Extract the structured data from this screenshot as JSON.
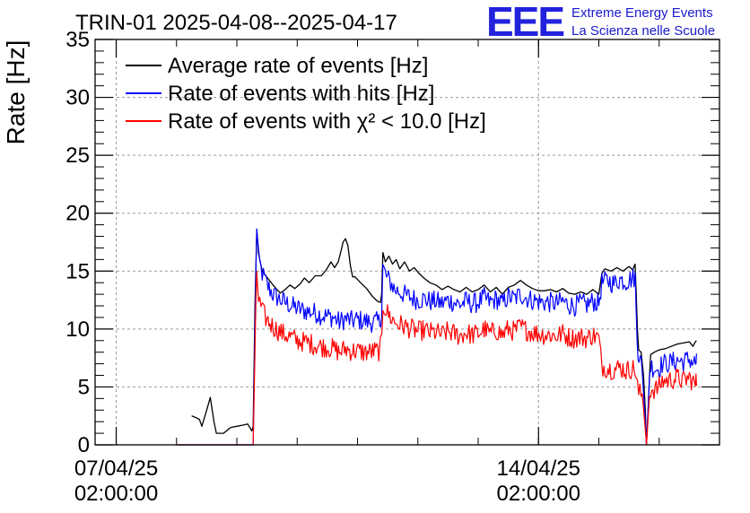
{
  "header": {
    "title": "TRIN-01 2025-04-08--2025-04-17",
    "logo_letters": "EEE",
    "logo_line1": "Extreme Energy Events",
    "logo_line2": "La Scienza nelle Scuole"
  },
  "chart_data": {
    "type": "line",
    "title": "TRIN-01 2025-04-08--2025-04-17",
    "ylabel": "Rate [Hz]",
    "xlabel": "",
    "x_unit": "days since 07/04/25 02:00:00",
    "xlim": [
      -0.35,
      10.0
    ],
    "ylim": [
      0,
      35
    ],
    "yticks": [
      0,
      5,
      10,
      15,
      20,
      25,
      30,
      35
    ],
    "xticks": [
      {
        "x": 0,
        "line1": "07/04/25",
        "line2": "02:00:00"
      },
      {
        "x": 7,
        "line1": "14/04/25",
        "line2": "02:00:00"
      }
    ],
    "grid": true,
    "legend_position": "top-left",
    "series": [
      {
        "name": "Average rate of events [Hz]",
        "color": "#000000",
        "points": [
          [
            1.25,
            2.5
          ],
          [
            1.3,
            2.4
          ],
          [
            1.38,
            2.2
          ],
          [
            1.42,
            1.6
          ],
          [
            1.46,
            2.3
          ],
          [
            1.5,
            3.0
          ],
          [
            1.56,
            4.1
          ],
          [
            1.62,
            2.0
          ],
          [
            1.66,
            1.0
          ],
          [
            1.72,
            1.0
          ],
          [
            1.78,
            1.0
          ],
          [
            1.85,
            1.3
          ],
          [
            1.9,
            1.5
          ],
          [
            2.0,
            1.6
          ],
          [
            2.1,
            1.7
          ],
          [
            2.18,
            1.8
          ],
          [
            2.25,
            1.2
          ],
          [
            2.27,
            1.6
          ],
          [
            2.3,
            12.0
          ],
          [
            2.33,
            18.6
          ],
          [
            2.36,
            16.5
          ],
          [
            2.42,
            15.0
          ],
          [
            2.48,
            14.6
          ],
          [
            2.54,
            14.2
          ],
          [
            2.6,
            13.8
          ],
          [
            2.65,
            13.5
          ],
          [
            2.72,
            13.1
          ],
          [
            2.8,
            13.4
          ],
          [
            2.88,
            13.8
          ],
          [
            2.96,
            13.5
          ],
          [
            3.05,
            13.9
          ],
          [
            3.12,
            14.4
          ],
          [
            3.2,
            14.0
          ],
          [
            3.3,
            14.6
          ],
          [
            3.4,
            14.6
          ],
          [
            3.48,
            15.1
          ],
          [
            3.56,
            15.8
          ],
          [
            3.62,
            15.3
          ],
          [
            3.68,
            15.8
          ],
          [
            3.72,
            16.6
          ],
          [
            3.76,
            17.5
          ],
          [
            3.8,
            17.8
          ],
          [
            3.84,
            17.2
          ],
          [
            3.88,
            15.5
          ],
          [
            3.92,
            14.5
          ],
          [
            3.96,
            14.5
          ],
          [
            4.05,
            14.0
          ],
          [
            4.15,
            13.5
          ],
          [
            4.25,
            12.8
          ],
          [
            4.33,
            12.4
          ],
          [
            4.38,
            12.3
          ],
          [
            4.4,
            13.0
          ],
          [
            4.42,
            16.6
          ],
          [
            4.46,
            15.8
          ],
          [
            4.52,
            16.3
          ],
          [
            4.58,
            15.6
          ],
          [
            4.64,
            16.0
          ],
          [
            4.7,
            15.2
          ],
          [
            4.78,
            15.8
          ],
          [
            4.86,
            15.0
          ],
          [
            4.94,
            15.3
          ],
          [
            5.02,
            14.8
          ],
          [
            5.1,
            14.4
          ],
          [
            5.2,
            14.0
          ],
          [
            5.3,
            13.8
          ],
          [
            5.4,
            13.4
          ],
          [
            5.5,
            13.7
          ],
          [
            5.6,
            13.4
          ],
          [
            5.7,
            13.2
          ],
          [
            5.8,
            13.6
          ],
          [
            5.9,
            13.2
          ],
          [
            6.0,
            13.4
          ],
          [
            6.1,
            13.8
          ],
          [
            6.2,
            13.2
          ],
          [
            6.3,
            13.6
          ],
          [
            6.4,
            13.0
          ],
          [
            6.5,
            13.6
          ],
          [
            6.6,
            13.8
          ],
          [
            6.7,
            14.2
          ],
          [
            6.8,
            13.8
          ],
          [
            6.9,
            13.5
          ],
          [
            7.0,
            13.3
          ],
          [
            7.1,
            13.3
          ],
          [
            7.2,
            13.4
          ],
          [
            7.3,
            13.2
          ],
          [
            7.4,
            13.5
          ],
          [
            7.5,
            13.1
          ],
          [
            7.6,
            13.0
          ],
          [
            7.7,
            13.2
          ],
          [
            7.8,
            13.0
          ],
          [
            7.9,
            13.4
          ],
          [
            8.0,
            13.0
          ],
          [
            8.05,
            14.8
          ],
          [
            8.1,
            15.2
          ],
          [
            8.2,
            15.0
          ],
          [
            8.3,
            15.3
          ],
          [
            8.4,
            15.0
          ],
          [
            8.5,
            15.4
          ],
          [
            8.56,
            15.1
          ],
          [
            8.6,
            15.6
          ],
          [
            8.62,
            13.0
          ],
          [
            8.64,
            10.0
          ],
          [
            8.66,
            8.2
          ],
          [
            8.7,
            8.0
          ],
          [
            8.74,
            6.0
          ],
          [
            8.77,
            3.0
          ],
          [
            8.79,
            0.0
          ],
          [
            8.81,
            2.0
          ],
          [
            8.84,
            6.0
          ],
          [
            8.86,
            7.8
          ],
          [
            8.92,
            8.0
          ],
          [
            9.0,
            8.2
          ],
          [
            9.1,
            8.3
          ],
          [
            9.2,
            8.5
          ],
          [
            9.3,
            8.7
          ],
          [
            9.4,
            8.8
          ],
          [
            9.5,
            8.9
          ],
          [
            9.56,
            8.5
          ],
          [
            9.6,
            8.9
          ],
          [
            9.62,
            9.0
          ]
        ]
      },
      {
        "name": "Rate of events with hits [Hz]",
        "color": "#0000ff",
        "points": [
          [
            1.0,
            0.0
          ],
          [
            2.27,
            0.0
          ],
          [
            2.3,
            10.0
          ],
          [
            2.33,
            19.0
          ],
          [
            2.36,
            16.0
          ],
          [
            2.42,
            14.8
          ],
          [
            2.5,
            13.8
          ],
          [
            2.6,
            13.0
          ],
          [
            2.7,
            12.6
          ],
          [
            2.8,
            12.3
          ],
          [
            2.9,
            12.0
          ],
          [
            3.0,
            11.8
          ],
          [
            3.1,
            11.6
          ],
          [
            3.2,
            11.5
          ],
          [
            3.3,
            11.4
          ],
          [
            3.4,
            11.2
          ],
          [
            3.5,
            11.1
          ],
          [
            3.6,
            11.0
          ],
          [
            3.7,
            10.6
          ],
          [
            3.8,
            10.9
          ],
          [
            3.9,
            10.7
          ],
          [
            4.0,
            10.8
          ],
          [
            4.1,
            10.7
          ],
          [
            4.2,
            10.6
          ],
          [
            4.3,
            10.6
          ],
          [
            4.37,
            10.6
          ],
          [
            4.4,
            11.5
          ],
          [
            4.42,
            15.3
          ],
          [
            4.48,
            14.5
          ],
          [
            4.55,
            14.0
          ],
          [
            4.62,
            13.4
          ],
          [
            4.7,
            13.2
          ],
          [
            4.8,
            12.9
          ],
          [
            4.9,
            12.7
          ],
          [
            5.0,
            12.5
          ],
          [
            5.1,
            12.6
          ],
          [
            5.2,
            12.4
          ],
          [
            5.3,
            12.4
          ],
          [
            5.4,
            12.2
          ],
          [
            5.5,
            12.5
          ],
          [
            5.6,
            12.3
          ],
          [
            5.7,
            12.1
          ],
          [
            5.8,
            12.4
          ],
          [
            5.9,
            12.2
          ],
          [
            6.0,
            12.3
          ],
          [
            6.1,
            12.7
          ],
          [
            6.2,
            12.3
          ],
          [
            6.3,
            12.6
          ],
          [
            6.4,
            12.2
          ],
          [
            6.5,
            12.8
          ],
          [
            6.6,
            12.6
          ],
          [
            6.7,
            13.0
          ],
          [
            6.8,
            12.7
          ],
          [
            6.9,
            12.5
          ],
          [
            7.0,
            12.4
          ],
          [
            7.1,
            12.3
          ],
          [
            7.2,
            12.3
          ],
          [
            7.3,
            12.2
          ],
          [
            7.4,
            12.4
          ],
          [
            7.5,
            12.1
          ],
          [
            7.6,
            12.0
          ],
          [
            7.7,
            12.2
          ],
          [
            7.8,
            12.1
          ],
          [
            7.9,
            12.4
          ],
          [
            8.0,
            12.2
          ],
          [
            8.05,
            14.0
          ],
          [
            8.15,
            14.2
          ],
          [
            8.25,
            13.9
          ],
          [
            8.35,
            14.3
          ],
          [
            8.45,
            14.1
          ],
          [
            8.55,
            14.4
          ],
          [
            8.6,
            14.5
          ],
          [
            8.62,
            11.5
          ],
          [
            8.65,
            8.0
          ],
          [
            8.7,
            7.0
          ],
          [
            8.74,
            5.0
          ],
          [
            8.77,
            2.0
          ],
          [
            8.79,
            0.0
          ],
          [
            8.81,
            2.5
          ],
          [
            8.84,
            6.0
          ],
          [
            8.86,
            6.8
          ],
          [
            8.95,
            6.6
          ],
          [
            9.0,
            6.6
          ],
          [
            9.05,
            7.0
          ],
          [
            9.2,
            7.1
          ],
          [
            9.3,
            7.3
          ],
          [
            9.4,
            7.2
          ],
          [
            9.5,
            7.4
          ],
          [
            9.6,
            7.0
          ],
          [
            9.62,
            7.3
          ]
        ]
      },
      {
        "name": "Rate of events with χ² < 10.0 [Hz]",
        "color": "#ff0000",
        "points": [
          [
            1.0,
            0.0
          ],
          [
            2.27,
            0.0
          ],
          [
            2.3,
            8.0
          ],
          [
            2.33,
            15.0
          ],
          [
            2.36,
            12.5
          ],
          [
            2.42,
            11.5
          ],
          [
            2.5,
            10.8
          ],
          [
            2.6,
            10.2
          ],
          [
            2.7,
            9.8
          ],
          [
            2.8,
            9.5
          ],
          [
            2.9,
            9.3
          ],
          [
            3.0,
            9.0
          ],
          [
            3.1,
            8.9
          ],
          [
            3.2,
            8.8
          ],
          [
            3.3,
            8.6
          ],
          [
            3.4,
            8.5
          ],
          [
            3.5,
            8.4
          ],
          [
            3.6,
            8.3
          ],
          [
            3.7,
            8.0
          ],
          [
            3.8,
            8.3
          ],
          [
            3.9,
            8.1
          ],
          [
            4.0,
            8.1
          ],
          [
            4.1,
            8.0
          ],
          [
            4.2,
            8.0
          ],
          [
            4.3,
            8.1
          ],
          [
            4.37,
            8.1
          ],
          [
            4.4,
            9.0
          ],
          [
            4.42,
            12.2
          ],
          [
            4.48,
            11.5
          ],
          [
            4.55,
            11.0
          ],
          [
            4.62,
            10.6
          ],
          [
            4.7,
            10.4
          ],
          [
            4.8,
            10.2
          ],
          [
            4.9,
            10.0
          ],
          [
            5.0,
            9.8
          ],
          [
            5.1,
            9.9
          ],
          [
            5.2,
            9.7
          ],
          [
            5.3,
            9.7
          ],
          [
            5.4,
            9.5
          ],
          [
            5.5,
            9.8
          ],
          [
            5.6,
            9.6
          ],
          [
            5.7,
            9.4
          ],
          [
            5.8,
            9.7
          ],
          [
            5.9,
            9.5
          ],
          [
            6.0,
            9.6
          ],
          [
            6.1,
            10.0
          ],
          [
            6.2,
            9.6
          ],
          [
            6.3,
            9.9
          ],
          [
            6.4,
            9.5
          ],
          [
            6.5,
            10.0
          ],
          [
            6.6,
            9.8
          ],
          [
            6.7,
            10.2
          ],
          [
            6.8,
            9.9
          ],
          [
            6.9,
            9.7
          ],
          [
            7.0,
            9.6
          ],
          [
            7.1,
            9.5
          ],
          [
            7.2,
            9.5
          ],
          [
            7.3,
            9.4
          ],
          [
            7.4,
            9.6
          ],
          [
            7.5,
            9.3
          ],
          [
            7.6,
            9.2
          ],
          [
            7.7,
            9.3
          ],
          [
            7.8,
            9.2
          ],
          [
            7.9,
            9.5
          ],
          [
            8.0,
            9.2
          ],
          [
            8.05,
            6.8
          ],
          [
            8.15,
            6.6
          ],
          [
            8.25,
            6.5
          ],
          [
            8.35,
            6.7
          ],
          [
            8.45,
            6.4
          ],
          [
            8.55,
            6.6
          ],
          [
            8.6,
            6.5
          ],
          [
            8.62,
            5.5
          ],
          [
            8.66,
            4.5
          ],
          [
            8.72,
            4.3
          ],
          [
            8.76,
            2.0
          ],
          [
            8.79,
            0.0
          ],
          [
            8.81,
            1.8
          ],
          [
            8.84,
            4.2
          ],
          [
            8.86,
            4.8
          ],
          [
            8.95,
            4.8
          ],
          [
            9.0,
            5.0
          ],
          [
            9.05,
            5.5
          ],
          [
            9.2,
            5.6
          ],
          [
            9.3,
            5.8
          ],
          [
            9.4,
            5.5
          ],
          [
            9.5,
            5.8
          ],
          [
            9.6,
            5.2
          ],
          [
            9.62,
            5.5
          ]
        ]
      }
    ]
  }
}
